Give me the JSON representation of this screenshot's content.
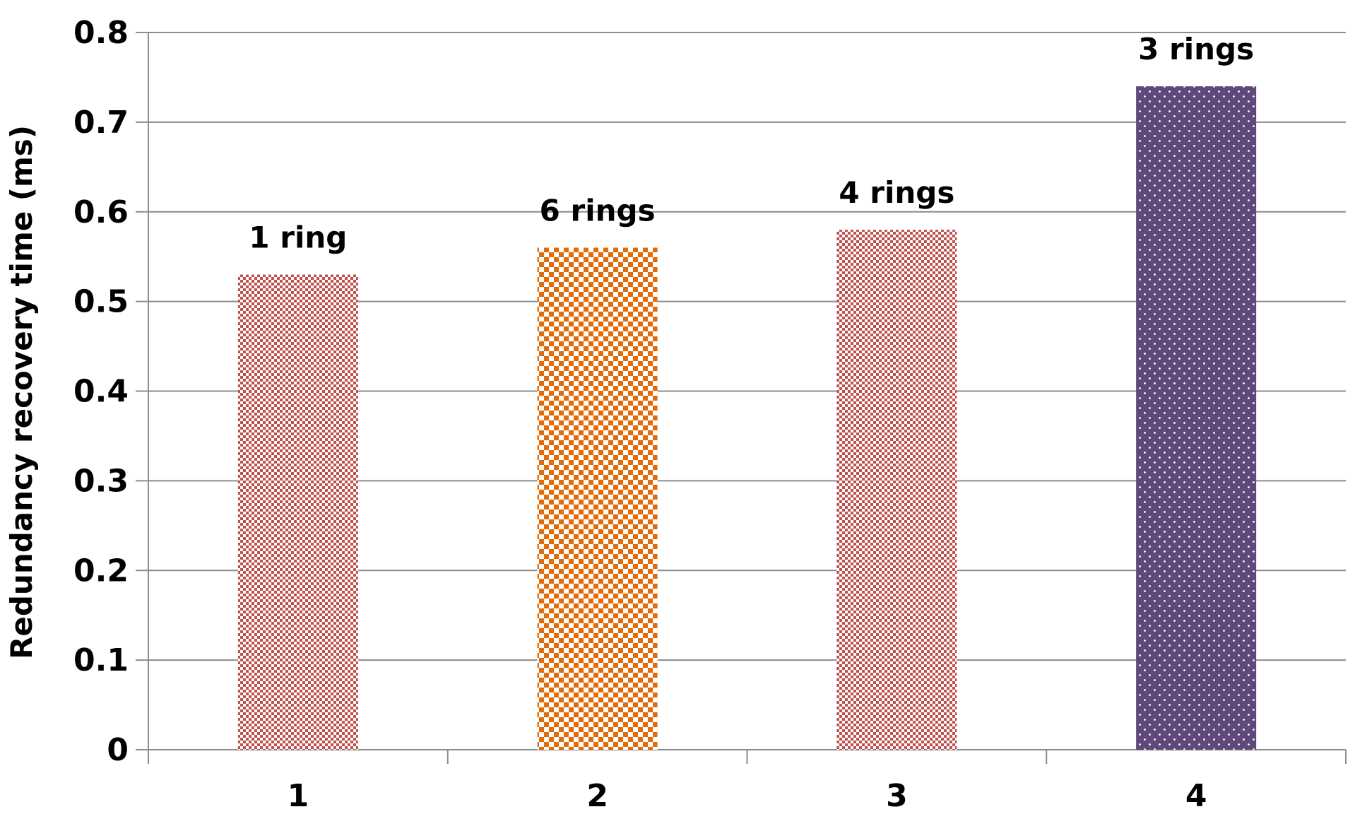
{
  "chart_data": {
    "type": "bar",
    "title": "",
    "xlabel": "",
    "ylabel": "Redundancy recovery time (ms)",
    "categories": [
      "1",
      "2",
      "3",
      "4"
    ],
    "values": [
      0.53,
      0.56,
      0.58,
      0.74
    ],
    "bar_labels": [
      "1 ring",
      "6 rings",
      "4 rings",
      "3 rings"
    ],
    "bar_colors": [
      "#c0504d",
      "#e36c09",
      "#c0504d",
      "#5f497a"
    ],
    "bar_patterns": [
      "small-checker",
      "checker",
      "small-checker",
      "dots"
    ],
    "ylim": [
      0,
      0.8
    ],
    "yticks": [
      "0",
      "0.1",
      "0.2",
      "0.3",
      "0.4",
      "0.5",
      "0.6",
      "0.7",
      "0.8"
    ],
    "grid": true,
    "legend": "none"
  }
}
